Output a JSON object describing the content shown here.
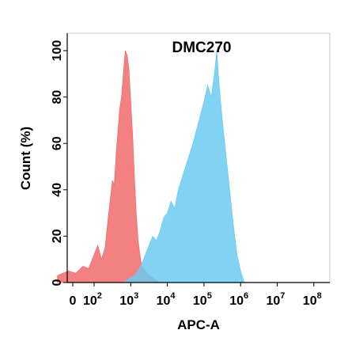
{
  "chart_data": {
    "type": "area",
    "title": "DMC270",
    "xlabel": "APC-A",
    "ylabel": "Count (%)",
    "x_scale": "biexponential",
    "ylim": [
      0,
      100
    ],
    "y_ticks": [
      "0",
      "20",
      "40",
      "60",
      "80",
      "100"
    ],
    "x_ticks": [
      {
        "base": "0",
        "exp": ""
      },
      {
        "base": "10",
        "exp": "2"
      },
      {
        "base": "10",
        "exp": "3"
      },
      {
        "base": "10",
        "exp": "4"
      },
      {
        "base": "10",
        "exp": "5"
      },
      {
        "base": "10",
        "exp": "6"
      },
      {
        "base": "10",
        "exp": "7"
      },
      {
        "base": "10",
        "exp": "8"
      }
    ],
    "series": [
      {
        "color": "#f26b6b",
        "x_log10": [
          1.0,
          1.3,
          1.5,
          1.7,
          1.85,
          2.0,
          2.1,
          2.2,
          2.3,
          2.4,
          2.5,
          2.55,
          2.6,
          2.65,
          2.7,
          2.75,
          2.8,
          2.85,
          2.9,
          2.95,
          3.0,
          3.05,
          3.1,
          3.15,
          3.2,
          3.25,
          3.3,
          3.4,
          3.5,
          3.6,
          3.7,
          3.8
        ],
        "y": [
          3,
          5,
          4,
          7,
          6,
          12,
          16,
          10,
          15,
          30,
          44,
          42,
          55,
          65,
          75,
          80,
          90,
          100,
          98,
          92,
          78,
          64,
          46,
          30,
          18,
          12,
          7,
          5,
          3,
          2,
          1,
          0
        ]
      },
      {
        "color": "#6ccaf2",
        "x_log10": [
          2.8,
          3.0,
          3.1,
          3.2,
          3.3,
          3.4,
          3.5,
          3.6,
          3.7,
          3.8,
          3.9,
          4.0,
          4.1,
          4.2,
          4.3,
          4.4,
          4.5,
          4.6,
          4.7,
          4.8,
          4.9,
          5.0,
          5.1,
          5.2,
          5.3,
          5.35,
          5.4,
          5.5,
          5.6,
          5.7,
          5.8,
          5.9,
          6.0,
          6.1
        ],
        "y": [
          0,
          2,
          3,
          5,
          8,
          12,
          16,
          20,
          18,
          22,
          28,
          30,
          35,
          32,
          40,
          45,
          50,
          55,
          60,
          66,
          72,
          78,
          85,
          80,
          92,
          100,
          88,
          70,
          55,
          40,
          25,
          12,
          5,
          0
        ]
      }
    ]
  }
}
